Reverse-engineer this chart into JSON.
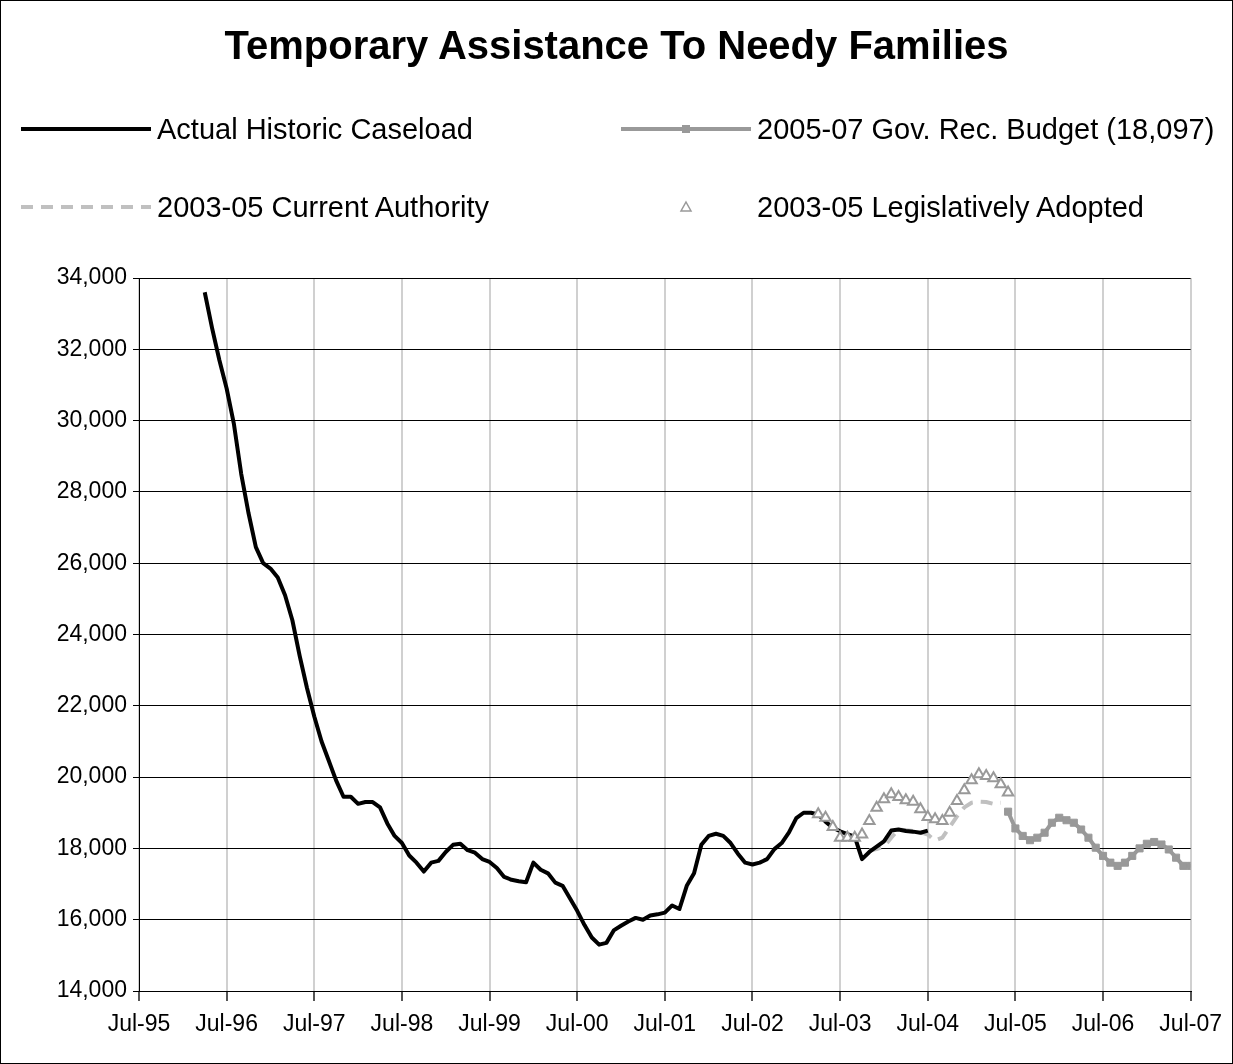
{
  "chart_data": {
    "type": "line",
    "title": "Temporary Assistance To Needy Families",
    "xlim": [
      "1995-07",
      "2007-07"
    ],
    "xticks": [
      {
        "value": "1995-07",
        "label": "Jul-95"
      },
      {
        "value": "1996-07",
        "label": "Jul-96"
      },
      {
        "value": "1997-07",
        "label": "Jul-97"
      },
      {
        "value": "1998-07",
        "label": "Jul-98"
      },
      {
        "value": "1999-07",
        "label": "Jul-99"
      },
      {
        "value": "2000-07",
        "label": "Jul-00"
      },
      {
        "value": "2001-07",
        "label": "Jul-01"
      },
      {
        "value": "2002-07",
        "label": "Jul-02"
      },
      {
        "value": "2003-07",
        "label": "Jul-03"
      },
      {
        "value": "2004-07",
        "label": "Jul-04"
      },
      {
        "value": "2005-07",
        "label": "Jul-05"
      },
      {
        "value": "2006-07",
        "label": "Jul-06"
      },
      {
        "value": "2007-07",
        "label": "Jul-07"
      }
    ],
    "ylim": [
      14000,
      34000
    ],
    "yticks": [
      {
        "value": 14000,
        "label": "14,000"
      },
      {
        "value": 16000,
        "label": "16,000"
      },
      {
        "value": 18000,
        "label": "18,000"
      },
      {
        "value": 20000,
        "label": "20,000"
      },
      {
        "value": 22000,
        "label": "22,000"
      },
      {
        "value": 24000,
        "label": "24,000"
      },
      {
        "value": 26000,
        "label": "26,000"
      },
      {
        "value": 28000,
        "label": "28,000"
      },
      {
        "value": 30000,
        "label": "30,000"
      },
      {
        "value": 32000,
        "label": "32,000"
      },
      {
        "value": 34000,
        "label": "34,000"
      }
    ],
    "grid": true,
    "legend": "top",
    "series": [
      {
        "name": "Actual Historic Caseload",
        "type": "line",
        "color": "#000000",
        "marker": "none",
        "line_style": "solid",
        "x": [
          "1996-04",
          "1996-05",
          "1996-06",
          "1996-07",
          "1996-08",
          "1996-09",
          "1996-10",
          "1996-11",
          "1996-12",
          "1997-01",
          "1997-02",
          "1997-03",
          "1997-04",
          "1997-05",
          "1997-06",
          "1997-07",
          "1997-08",
          "1997-09",
          "1997-10",
          "1997-11",
          "1997-12",
          "1998-01",
          "1998-02",
          "1998-03",
          "1998-04",
          "1998-05",
          "1998-06",
          "1998-07",
          "1998-08",
          "1998-09",
          "1998-10",
          "1998-11",
          "1998-12",
          "1999-01",
          "1999-02",
          "1999-03",
          "1999-04",
          "1999-05",
          "1999-06",
          "1999-07",
          "1999-08",
          "1999-09",
          "1999-10",
          "1999-11",
          "1999-12",
          "2000-01",
          "2000-02",
          "2000-03",
          "2000-04",
          "2000-05",
          "2000-06",
          "2000-07",
          "2000-08",
          "2000-09",
          "2000-10",
          "2000-11",
          "2000-12",
          "2001-01",
          "2001-02",
          "2001-03",
          "2001-04",
          "2001-05",
          "2001-06",
          "2001-07",
          "2001-08",
          "2001-09",
          "2001-10",
          "2001-11",
          "2001-12",
          "2002-01",
          "2002-02",
          "2002-03",
          "2002-04",
          "2002-05",
          "2002-06",
          "2002-07",
          "2002-08",
          "2002-09",
          "2002-10",
          "2002-11",
          "2002-12",
          "2003-01",
          "2003-02",
          "2003-03",
          "2003-04",
          "2003-05",
          "2003-06",
          "2003-07",
          "2003-08",
          "2003-09",
          "2003-10",
          "2003-11",
          "2003-12",
          "2004-01",
          "2004-02",
          "2004-03",
          "2004-04",
          "2004-05",
          "2004-06",
          "2004-07"
        ],
        "values": [
          33600,
          32600,
          31700,
          30900,
          29900,
          28500,
          27400,
          26450,
          26000,
          25850,
          25600,
          25100,
          24400,
          23400,
          22500,
          21700,
          21000,
          20450,
          19900,
          19450,
          19450,
          19250,
          19300,
          19300,
          19150,
          18700,
          18350,
          18150,
          17800,
          17600,
          17350,
          17600,
          17650,
          17900,
          18100,
          18130,
          17950,
          17880,
          17700,
          17620,
          17450,
          17200,
          17120,
          17080,
          17050,
          17600,
          17400,
          17300,
          17040,
          16950,
          16600,
          16250,
          15850,
          15500,
          15300,
          15350,
          15700,
          15830,
          15950,
          16050,
          16000,
          16120,
          16150,
          16200,
          16400,
          16300,
          16950,
          17300,
          18100,
          18350,
          18410,
          18350,
          18150,
          17850,
          17600,
          17550,
          17600,
          17700,
          17980,
          18150,
          18450,
          18850,
          19000,
          19000,
          18950,
          18750,
          18580,
          18480,
          18400,
          18330,
          17700,
          17900,
          18050,
          18200,
          18500,
          18530,
          18490,
          18470,
          18440,
          18500
        ]
      },
      {
        "name": "2005-07 Gov. Rec. Budget (18,097)",
        "type": "line",
        "color": "#999999",
        "marker": "square",
        "line_style": "solid",
        "x": [
          "2005-06",
          "2005-07",
          "2005-08",
          "2005-09",
          "2005-10",
          "2005-11",
          "2005-12",
          "2006-01",
          "2006-02",
          "2006-03",
          "2006-04",
          "2006-05",
          "2006-06",
          "2006-07",
          "2006-08",
          "2006-09",
          "2006-10",
          "2006-11",
          "2006-12",
          "2007-01",
          "2007-02",
          "2007-03",
          "2007-04",
          "2007-05",
          "2007-06",
          "2007-07"
        ],
        "values": [
          19030,
          18560,
          18350,
          18230,
          18300,
          18440,
          18720,
          18860,
          18790,
          18720,
          18530,
          18300,
          18020,
          17790,
          17600,
          17510,
          17600,
          17790,
          18000,
          18130,
          18180,
          18110,
          17970,
          17740,
          17510,
          17510
        ]
      },
      {
        "name": "2003-05 Current Authority",
        "type": "line",
        "color": "#c0c0c0",
        "marker": "none",
        "line_style": "dashed",
        "x": [
          "2003-11",
          "2003-12",
          "2004-01",
          "2004-02",
          "2004-03",
          "2004-04",
          "2004-05",
          "2004-06",
          "2004-07",
          "2004-08",
          "2004-09",
          "2004-10",
          "2004-11",
          "2004-12",
          "2005-01",
          "2005-02",
          "2005-03",
          "2005-04",
          "2005-05"
        ],
        "values": [
          17940,
          17980,
          18050,
          18300,
          18530,
          18510,
          18490,
          18450,
          18390,
          18220,
          18300,
          18600,
          18900,
          19150,
          19280,
          19310,
          19300,
          19250,
          19280
        ]
      },
      {
        "name": "2003-05 Legislatively Adopted",
        "type": "scatter",
        "color": "#999999",
        "marker": "triangle",
        "x": [
          "2003-04",
          "2003-05",
          "2003-06",
          "2003-07",
          "2003-08",
          "2003-09",
          "2003-10",
          "2003-11",
          "2003-12",
          "2004-01",
          "2004-02",
          "2004-03",
          "2004-04",
          "2004-05",
          "2004-06",
          "2004-07",
          "2004-08",
          "2004-09",
          "2004-10",
          "2004-11",
          "2004-12",
          "2005-01",
          "2005-02",
          "2005-03",
          "2005-04",
          "2005-05",
          "2005-06"
        ],
        "values": [
          18960,
          18860,
          18600,
          18300,
          18300,
          18300,
          18390,
          18770,
          19140,
          19380,
          19520,
          19440,
          19350,
          19310,
          19100,
          18880,
          18820,
          18770,
          19000,
          19330,
          19630,
          19910,
          20080,
          20030,
          19970,
          19800,
          19570
        ]
      }
    ]
  }
}
